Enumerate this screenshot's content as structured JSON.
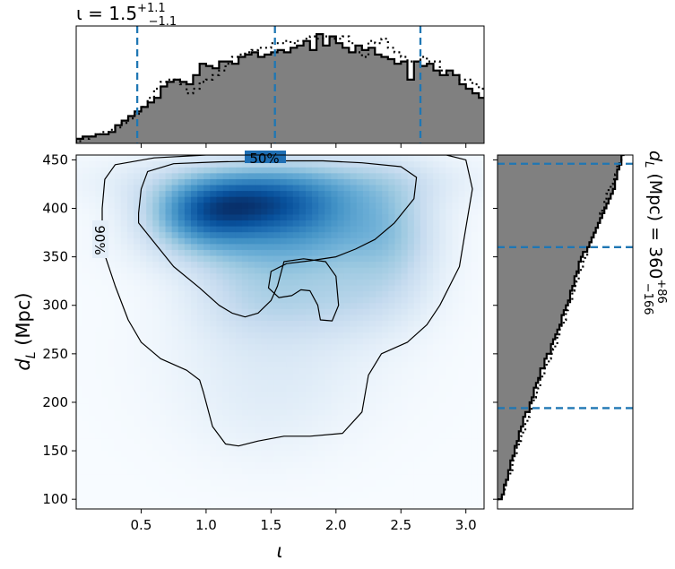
{
  "chart_data": [
    {
      "type": "heatmap",
      "panel": "joint",
      "xlabel": "ι",
      "ylabel_main": "d",
      "ylabel_sub": "L",
      "ylabel_unit": " (Mpc)",
      "xlim": [
        0.0,
        3.14
      ],
      "ylim": [
        90,
        455
      ],
      "xticks": [
        0.5,
        1.0,
        1.5,
        2.0,
        2.5,
        3.0
      ],
      "xtick_labels": [
        "0.5",
        "1.0",
        "1.5",
        "2.0",
        "2.5",
        "3.0"
      ],
      "yticks": [
        100,
        150,
        200,
        250,
        300,
        350,
        400,
        450
      ],
      "ytick_labels": [
        "100",
        "150",
        "200",
        "250",
        "300",
        "350",
        "400",
        "450"
      ],
      "colormap": "Blues",
      "density_blobs": [
        {
          "x": 1.3,
          "y": 405,
          "sx": 0.42,
          "sy": 22,
          "w": 1.0
        },
        {
          "x": 0.95,
          "y": 390,
          "sx": 0.3,
          "sy": 25,
          "w": 0.75
        },
        {
          "x": 1.85,
          "y": 395,
          "sx": 0.45,
          "sy": 30,
          "w": 0.72
        },
        {
          "x": 2.45,
          "y": 370,
          "sx": 0.25,
          "sy": 45,
          "w": 0.42
        },
        {
          "x": 1.5,
          "y": 360,
          "sx": 0.6,
          "sy": 25,
          "w": 0.5
        },
        {
          "x": 1.35,
          "y": 310,
          "sx": 0.35,
          "sy": 30,
          "w": 0.35
        },
        {
          "x": 2.05,
          "y": 310,
          "sx": 0.4,
          "sy": 30,
          "w": 0.38
        },
        {
          "x": 1.55,
          "y": 250,
          "sx": 0.6,
          "sy": 50,
          "w": 0.22
        },
        {
          "x": 1.45,
          "y": 180,
          "sx": 0.45,
          "sy": 40,
          "w": 0.1
        },
        {
          "x": 1.6,
          "y": 430,
          "sx": 0.9,
          "sy": 20,
          "w": 0.45
        }
      ],
      "contours": [
        {
          "label": "50%",
          "points": [
            [
              0.48,
              395
            ],
            [
              0.5,
              420
            ],
            [
              0.55,
              438
            ],
            [
              0.75,
              446
            ],
            [
              1.1,
              448
            ],
            [
              1.5,
              449
            ],
            [
              1.9,
              449
            ],
            [
              2.2,
              447
            ],
            [
              2.5,
              443
            ],
            [
              2.62,
              432
            ],
            [
              2.6,
              410
            ],
            [
              2.45,
              385
            ],
            [
              2.3,
              368
            ],
            [
              2.15,
              358
            ],
            [
              2.0,
              350
            ],
            [
              1.8,
              346
            ],
            [
              1.62,
              343
            ],
            [
              1.5,
              335
            ],
            [
              1.48,
              318
            ],
            [
              1.56,
              308
            ],
            [
              1.66,
              310
            ],
            [
              1.73,
              316
            ],
            [
              1.8,
              315
            ],
            [
              1.86,
              300
            ],
            [
              1.88,
              285
            ],
            [
              1.97,
              284
            ],
            [
              2.02,
              300
            ],
            [
              2.0,
              330
            ],
            [
              1.92,
              345
            ],
            [
              1.75,
              348
            ],
            [
              1.6,
              345
            ],
            [
              1.55,
              320
            ],
            [
              1.5,
              305
            ],
            [
              1.4,
              292
            ],
            [
              1.3,
              288
            ],
            [
              1.2,
              292
            ],
            [
              1.1,
              300
            ],
            [
              0.95,
              318
            ],
            [
              0.75,
              340
            ],
            [
              0.6,
              365
            ],
            [
              0.48,
              385
            ],
            [
              0.48,
              395
            ]
          ]
        },
        {
          "label": "90%",
          "points": [
            [
              0.2,
              360
            ],
            [
              0.2,
              400
            ],
            [
              0.22,
              430
            ],
            [
              0.3,
              445
            ],
            [
              0.6,
              452
            ],
            [
              1.0,
              455
            ],
            [
              1.5,
              455
            ],
            [
              2.0,
              455
            ],
            [
              2.4,
              455
            ],
            [
              2.85,
              455
            ],
            [
              3.0,
              450
            ],
            [
              3.05,
              420
            ],
            [
              3.0,
              380
            ],
            [
              2.95,
              340
            ],
            [
              2.8,
              300
            ],
            [
              2.7,
              280
            ],
            [
              2.55,
              262
            ],
            [
              2.35,
              250
            ],
            [
              2.25,
              228
            ],
            [
              2.2,
              190
            ],
            [
              2.05,
              168
            ],
            [
              1.8,
              165
            ],
            [
              1.6,
              165
            ],
            [
              1.4,
              160
            ],
            [
              1.25,
              155
            ],
            [
              1.15,
              157
            ],
            [
              1.05,
              175
            ],
            [
              0.98,
              210
            ],
            [
              0.95,
              223
            ],
            [
              0.85,
              233
            ],
            [
              0.65,
              245
            ],
            [
              0.5,
              262
            ],
            [
              0.4,
              285
            ],
            [
              0.3,
              320
            ],
            [
              0.2,
              360
            ]
          ]
        }
      ],
      "contour_label_90": "90%",
      "contour_label_50": "50%"
    },
    {
      "type": "step-histogram",
      "panel": "top-marginal",
      "title_main": "ι = 1.5",
      "title_sup": "+1.1",
      "title_sub": "−1.1",
      "xlim": [
        0.0,
        3.14
      ],
      "bin_edges_start": 0.0,
      "bin_width": 0.05,
      "filled_heights": [
        2,
        3,
        3,
        4,
        4,
        5,
        8,
        10,
        12,
        14,
        16,
        18,
        20,
        25,
        27,
        28,
        27,
        26,
        30,
        35,
        34,
        33,
        36,
        36,
        35,
        38,
        39,
        40,
        38,
        39,
        40,
        41,
        40,
        42,
        43,
        45,
        41,
        48,
        43,
        47,
        44,
        42,
        40,
        43,
        41,
        42,
        39,
        38,
        37,
        35,
        36,
        28,
        36,
        34,
        35,
        32,
        30,
        32,
        30,
        26,
        24,
        22,
        20,
        18,
        16,
        14,
        12,
        10,
        8,
        6,
        4,
        4,
        4
      ],
      "dotted_heights": [
        1,
        2,
        3,
        4,
        5,
        6,
        7,
        9,
        11,
        13,
        16,
        20,
        24,
        27,
        28,
        28,
        26,
        22,
        24,
        27,
        28,
        30,
        32,
        35,
        38,
        39,
        40,
        41,
        42,
        42,
        44,
        44,
        45,
        44,
        45,
        46,
        47,
        46,
        47,
        46,
        46,
        47,
        44,
        40,
        38,
        45,
        44,
        46,
        42,
        40,
        38,
        36,
        36,
        38,
        36,
        36,
        32,
        30,
        30,
        28,
        28,
        26,
        24,
        22,
        20,
        17,
        15,
        12,
        10,
        8,
        6,
        4,
        3
      ],
      "quantile_lines": [
        0.47,
        1.53,
        2.65
      ],
      "hist_max": 50
    },
    {
      "type": "step-histogram",
      "panel": "right-marginal",
      "title_main": "d",
      "title_sub_L": "L",
      "title_rest": " (Mpc) = 360",
      "title_sup": "+86",
      "title_sub": "−166",
      "ylim": [
        90,
        455
      ],
      "bin_edges_start": 100,
      "bin_width": 5,
      "filled_counts": [
        2,
        3,
        3,
        4,
        5,
        5,
        6,
        6,
        7,
        8,
        8,
        9,
        10,
        10,
        11,
        12,
        12,
        13,
        15,
        15,
        16,
        17,
        17,
        18,
        19,
        20,
        20,
        22,
        22,
        23,
        25,
        25,
        26,
        27,
        28,
        29,
        30,
        30,
        31,
        32,
        33,
        34,
        34,
        35,
        36,
        36,
        37,
        38,
        38,
        39,
        40,
        42,
        43,
        44,
        45,
        46,
        47,
        48,
        49,
        50,
        51,
        52,
        53,
        54,
        55,
        55,
        56,
        56,
        57,
        58,
        58,
        59,
        60
      ],
      "dotted_counts": [
        2,
        3,
        4,
        4,
        5,
        6,
        7,
        7,
        8,
        9,
        9,
        10,
        11,
        12,
        13,
        13,
        14,
        15,
        16,
        16,
        17,
        18,
        19,
        20,
        20,
        21,
        22,
        23,
        24,
        25,
        26,
        27,
        28,
        28,
        29,
        30,
        31,
        32,
        32,
        33,
        34,
        35,
        35,
        36,
        37,
        38,
        38,
        39,
        40,
        41,
        42,
        42,
        43,
        44,
        45,
        46,
        47,
        48,
        48,
        49,
        50,
        50,
        51,
        52,
        53,
        54,
        55,
        56,
        56,
        57,
        58,
        59,
        60
      ],
      "quantile_lines": [
        194,
        360,
        446
      ],
      "hist_max": 60
    }
  ],
  "colors": {
    "fill": "#808080",
    "outline": "#000000",
    "quantile": "#1f77b4"
  }
}
